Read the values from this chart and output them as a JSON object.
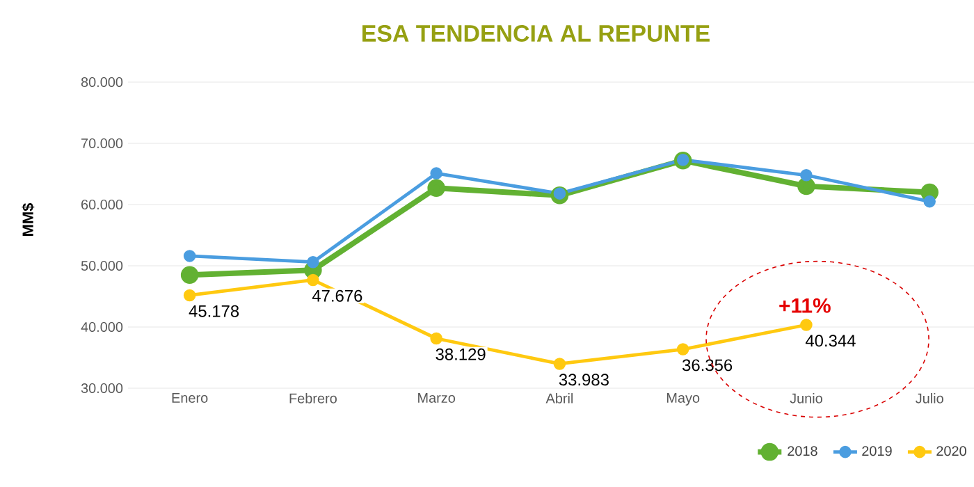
{
  "chart_data": {
    "type": "line",
    "title": "ESA TENDENCIA AL REPUNTE",
    "ylabel": "MM$",
    "categories": [
      "Enero",
      "Febrero",
      "Marzo",
      "Abril",
      "Mayo",
      "Junio",
      "Julio"
    ],
    "series": [
      {
        "name": "2018",
        "color": "#62b132",
        "values": [
          48500,
          49300,
          62700,
          61500,
          67200,
          63000,
          62000
        ]
      },
      {
        "name": "2019",
        "color": "#4a9de0",
        "values": [
          51600,
          50600,
          65100,
          61800,
          67300,
          64800,
          60500
        ]
      },
      {
        "name": "2020",
        "color": "#ffc910",
        "values": [
          45178,
          47676,
          38129,
          33983,
          36356,
          40344,
          null
        ],
        "value_labels": [
          "45.178",
          "47.676",
          "38.129",
          "33.983",
          "36.356",
          "40.344",
          null
        ]
      }
    ],
    "ylim": [
      30000,
      80000
    ],
    "yticks": [
      {
        "value": 30000,
        "label": "30.000"
      },
      {
        "value": 40000,
        "label": "40.000"
      },
      {
        "value": 50000,
        "label": "50.000"
      },
      {
        "value": 60000,
        "label": "60.000"
      },
      {
        "value": 70000,
        "label": "70.000"
      },
      {
        "value": 80000,
        "label": "80.000"
      }
    ],
    "grid": "y",
    "legend": "bottom right",
    "marker": "circle",
    "line_style": "solid",
    "annotations": [
      "+11%"
    ]
  }
}
